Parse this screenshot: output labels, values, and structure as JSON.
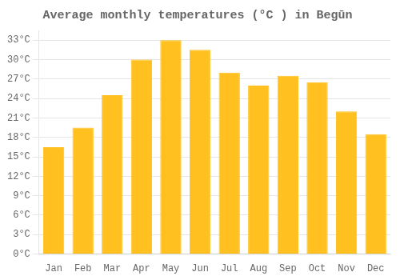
{
  "chart_data": {
    "type": "bar",
    "title": "Average monthly temperatures (°C ) in Begūn",
    "categories": [
      "Jan",
      "Feb",
      "Mar",
      "Apr",
      "May",
      "Jun",
      "Jul",
      "Aug",
      "Sep",
      "Oct",
      "Nov",
      "Dec"
    ],
    "values": [
      16.5,
      19.5,
      24.5,
      30.0,
      33.0,
      31.5,
      28.0,
      26.0,
      27.5,
      26.5,
      22.0,
      18.5
    ],
    "color": "#FFC020",
    "ylim": [
      0,
      34.5
    ],
    "yticks": [
      {
        "value": 0,
        "label": "0°C"
      },
      {
        "value": 3,
        "label": "3°C"
      },
      {
        "value": 6,
        "label": "6°C"
      },
      {
        "value": 9,
        "label": "9°C"
      },
      {
        "value": 12,
        "label": "12°C"
      },
      {
        "value": 15,
        "label": "15°C"
      },
      {
        "value": 18,
        "label": "18°C"
      },
      {
        "value": 21,
        "label": "21°C"
      },
      {
        "value": 24,
        "label": "24°C"
      },
      {
        "value": 27,
        "label": "27°C"
      },
      {
        "value": 30,
        "label": "30°C"
      },
      {
        "value": 33,
        "label": "33°C"
      }
    ],
    "grid": true
  }
}
